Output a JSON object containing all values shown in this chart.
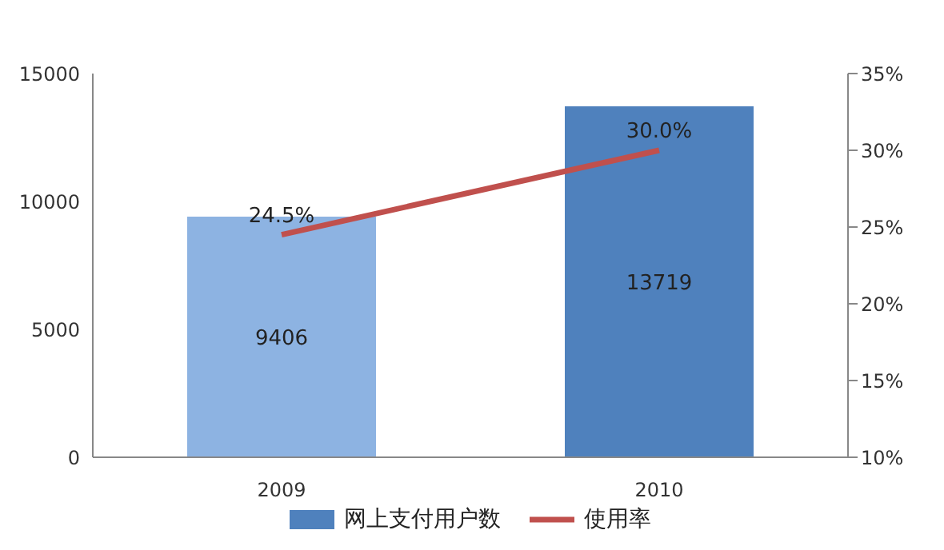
{
  "chart_data": {
    "type": "bar",
    "categories": [
      "2009",
      "2010"
    ],
    "series": [
      {
        "name": "网上支付用户数",
        "color": "#4f81bd",
        "colors": [
          "#8db3e2",
          "#4f81bd"
        ],
        "values": [
          9406,
          13719
        ],
        "value_labels": [
          "9406",
          "13719"
        ]
      },
      {
        "name": "使用率",
        "type": "line",
        "axis": "y2",
        "color": "#c0504d",
        "values": [
          24.5,
          30.0
        ],
        "value_labels": [
          "24.5%",
          "30.0%"
        ]
      }
    ],
    "ylim": [
      0,
      15000
    ],
    "yticks": [
      0,
      5000,
      10000,
      15000
    ],
    "y2lim": [
      10,
      35
    ],
    "y2ticks": [
      {
        "value": 10,
        "label": "10%"
      },
      {
        "value": 15,
        "label": "15%"
      },
      {
        "value": 20,
        "label": "20%"
      },
      {
        "value": 25,
        "label": "25%"
      },
      {
        "value": 30,
        "label": "30%"
      },
      {
        "value": 35,
        "label": "35%"
      }
    ],
    "legend": "bottom",
    "marker": "none"
  }
}
